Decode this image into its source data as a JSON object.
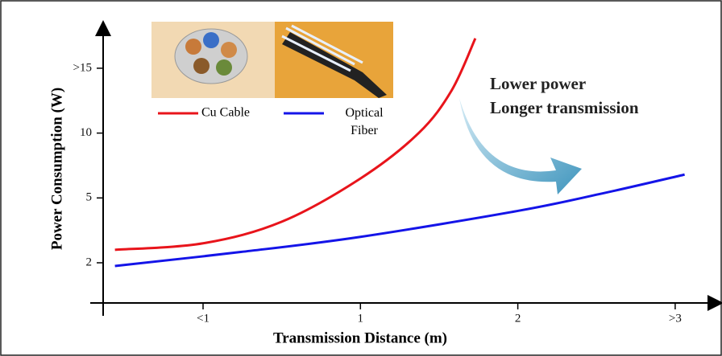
{
  "chart_data": {
    "type": "line",
    "x_label": "Transmission Distance (m)",
    "y_label": "Power Consumption (W)",
    "annotations": [
      "Lower power",
      "Longer transmission"
    ],
    "xlim": [
      0.2,
      3.25
    ],
    "ylim": [
      0.1,
      18
    ],
    "xticks": [
      {
        "value": 0.5,
        "label": "<1"
      },
      1,
      2,
      {
        "value": 3,
        "label": ">3"
      }
    ],
    "yticks": [
      2,
      5,
      10,
      {
        "value": 15,
        "label": ">15"
      }
    ],
    "series": [
      {
        "name": "Cu Cable",
        "color": "#e8141b",
        "x": [
          0.22,
          0.5,
          0.75,
          1.0,
          1.37,
          1.58,
          1.73
        ],
        "values": [
          2.6,
          2.9,
          3.9,
          6.5,
          10,
          13.3,
          17.3
        ]
      },
      {
        "name": "Optical Fiber",
        "color": "#1414e8",
        "x": [
          0.22,
          0.62,
          1.0,
          2.0,
          2.52,
          3.06
        ],
        "values": [
          1.85,
          2.5,
          3.2,
          4.4,
          5.3,
          6.8
        ]
      }
    ]
  }
}
